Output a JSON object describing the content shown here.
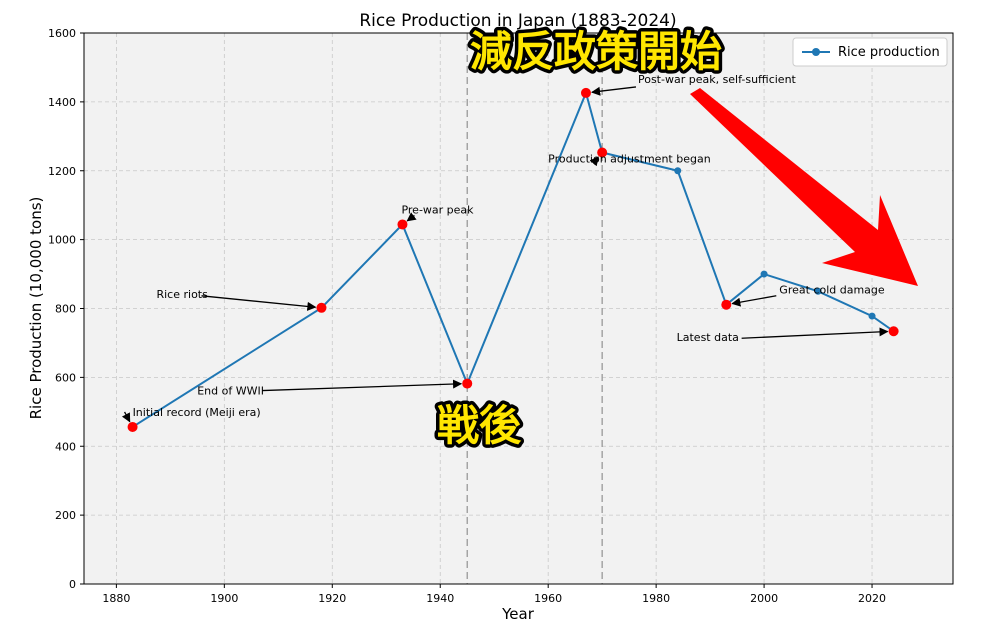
{
  "chart_data": {
    "type": "line",
    "title": "Rice Production in Japan (1883-2024)",
    "xlabel": "Year",
    "ylabel": "Rice Production (10,000 tons)",
    "xlim": [
      1874,
      2035
    ],
    "ylim": [
      0,
      1600
    ],
    "xticks": [
      1880,
      1900,
      1920,
      1940,
      1960,
      1980,
      2000,
      2020
    ],
    "yticks": [
      0,
      200,
      400,
      600,
      800,
      1000,
      1200,
      1400,
      1600
    ],
    "grid": true,
    "legend_position": "upper-right",
    "series": [
      {
        "name": "Rice production",
        "color": "#1f77b4",
        "x": [
          1883,
          1918,
          1933,
          1945,
          1967,
          1970,
          1984,
          1993,
          2000,
          2010,
          2020,
          2024
        ],
        "y": [
          456,
          802,
          1044,
          582,
          1426,
          1253,
          1200,
          811,
          900,
          850,
          778,
          734
        ]
      }
    ],
    "highlight_color": "#ff0000",
    "highlights": [
      {
        "x": 1883,
        "y": 456,
        "label": "Initial record (Meiji era)"
      },
      {
        "x": 1918,
        "y": 802,
        "label": "Rice riots"
      },
      {
        "x": 1933,
        "y": 1044,
        "label": "Pre-war peak"
      },
      {
        "x": 1945,
        "y": 582,
        "label": "End of WWII"
      },
      {
        "x": 1967,
        "y": 1426,
        "label": "Post-war peak, self-sufficient"
      },
      {
        "x": 1970,
        "y": 1253,
        "label": "Production adjustment began"
      },
      {
        "x": 1993,
        "y": 811,
        "label": "Great cold damage"
      },
      {
        "x": 2024,
        "y": 734,
        "label": "Latest data"
      }
    ],
    "vlines": [
      1945,
      1970
    ]
  },
  "overlays": {
    "postwar_caption": "戦後",
    "gentan_caption": "減反政策開始",
    "arrow_color": "#ff0000"
  }
}
